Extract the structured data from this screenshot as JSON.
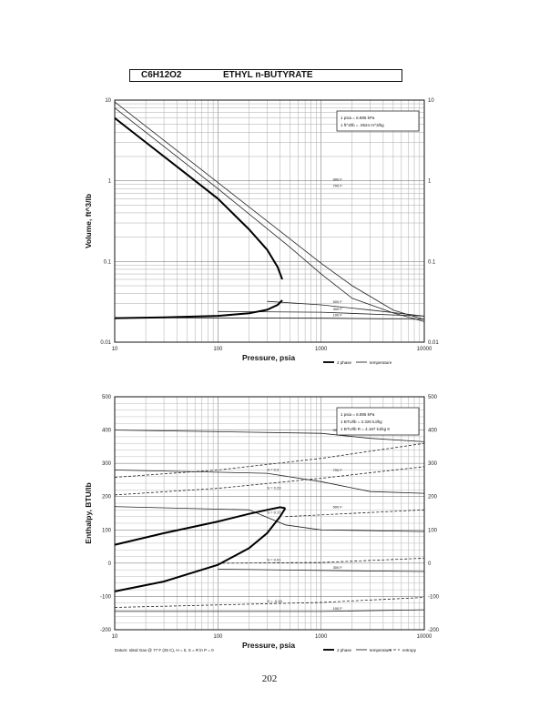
{
  "header": {
    "formula": "C6H12O2",
    "compound": "ETHYL n-BUTYRATE"
  },
  "page_number": "202",
  "chart_data": [
    {
      "type": "line",
      "xlabel": "Pressure,  psia",
      "ylabel": "Volume, ft^3/lb",
      "xscale": "log",
      "yscale": "log",
      "xlim": [
        10,
        10000
      ],
      "ylim": [
        0.01,
        10
      ],
      "x_ticks": [
        "10",
        "100",
        "1000",
        "10000"
      ],
      "y_ticks": [
        "0.01",
        "0.1",
        "1",
        "10"
      ],
      "grid": true,
      "info_box": [
        "1 psia = 6.895 kPa",
        "1 ft^3/lb = .0624 m^3/kg"
      ],
      "legend": [
        "2 phase",
        "temperature"
      ],
      "saturated_liquid": {
        "x": [
          10,
          30,
          100,
          200,
          300,
          380,
          420
        ],
        "y": [
          0.0198,
          0.0203,
          0.0212,
          0.0228,
          0.0252,
          0.029,
          0.033
        ]
      },
      "saturated_vapor": {
        "x": [
          10,
          20,
          50,
          100,
          200,
          300,
          380,
          420
        ],
        "y": [
          6.0,
          3.0,
          1.2,
          0.6,
          0.25,
          0.14,
          0.085,
          0.06
        ]
      },
      "series": [
        {
          "name": "900 F",
          "x": [
            10,
            100,
            1000,
            2000,
            5000,
            10000
          ],
          "y": [
            9.5,
            0.95,
            0.095,
            0.05,
            0.025,
            0.019
          ]
        },
        {
          "name": "700 F",
          "x": [
            10,
            100,
            500,
            1000,
            2000,
            5000,
            10000
          ],
          "y": [
            8.0,
            0.8,
            0.15,
            0.07,
            0.035,
            0.023,
            0.018
          ]
        },
        {
          "name": "500 F",
          "x": [
            300,
            1000,
            3000,
            10000
          ],
          "y": [
            0.032,
            0.029,
            0.025,
            0.021
          ]
        },
        {
          "name": "300 F",
          "x": [
            100,
            1000,
            10000
          ],
          "y": [
            0.024,
            0.0235,
            0.021
          ]
        },
        {
          "name": "100 F",
          "x": [
            10,
            1000,
            10000
          ],
          "y": [
            0.0201,
            0.0198,
            0.0192
          ]
        }
      ]
    },
    {
      "type": "line",
      "xlabel": "Pressure,  psia",
      "ylabel": "Enthalpy, BTU/lb",
      "xscale": "log",
      "xlim": [
        10,
        10000
      ],
      "ylim": [
        -200,
        500
      ],
      "x_ticks": [
        "10",
        "100",
        "1000",
        "10000"
      ],
      "y_ticks": [
        "-200",
        "-100",
        "0",
        "100",
        "200",
        "300",
        "400",
        "500"
      ],
      "grid": true,
      "info_box": [
        "1 psia = 6.895 kPa",
        "1 BTU/lb = 2.326 kJ/kg",
        "1 BTU/lb R = 4.187 kJ/kg K"
      ],
      "legend": [
        "2 phase",
        "temperature",
        "entropy"
      ],
      "footnote": "Datum: Ideal Gas @ 77 F (25 C),  H = 0,  S = R ln P = 0",
      "saturated_liquid": {
        "x": [
          10,
          30,
          100,
          200,
          300,
          400,
          450
        ],
        "y": [
          -85,
          -55,
          -5,
          45,
          90,
          140,
          165
        ]
      },
      "saturated_vapor": {
        "x": [
          10,
          30,
          100,
          200,
          300,
          400,
          450
        ],
        "y": [
          55,
          90,
          125,
          148,
          160,
          168,
          165
        ]
      },
      "series": [
        {
          "name": "900 F",
          "x": [
            10,
            1000,
            3000,
            10000
          ],
          "y": [
            400,
            390,
            375,
            365
          ]
        },
        {
          "name": "700 F",
          "x": [
            10,
            300,
            1000,
            3000,
            10000
          ],
          "y": [
            280,
            270,
            245,
            215,
            210
          ]
        },
        {
          "name": "500 F",
          "x": [
            10,
            200,
            450,
            1000,
            10000
          ],
          "y": [
            170,
            160,
            115,
            100,
            95
          ]
        },
        {
          "name": "300 F",
          "x": [
            100,
            1000,
            10000
          ],
          "y": [
            -18,
            -22,
            -25
          ]
        },
        {
          "name": "100 F",
          "x": [
            10,
            1000,
            10000
          ],
          "y": [
            -145,
            -145,
            -140
          ]
        },
        {
          "name": "S = 0.3",
          "x": [
            10,
            100,
            1000,
            10000
          ],
          "y": [
            258,
            280,
            315,
            360
          ]
        },
        {
          "name": "S = 0.23",
          "x": [
            10,
            100,
            1000,
            10000
          ],
          "y": [
            205,
            225,
            255,
            290
          ]
        },
        {
          "name": "S = 0.17",
          "x": [
            450,
            1000,
            10000
          ],
          "y": [
            140,
            145,
            160
          ]
        },
        {
          "name": "S = 0.01",
          "x": [
            100,
            1000,
            10000
          ],
          "y": [
            0,
            2,
            15
          ]
        },
        {
          "name": "S = -0.15",
          "x": [
            10,
            1000,
            10000
          ],
          "y": [
            -133,
            -118,
            -103
          ]
        }
      ]
    }
  ]
}
